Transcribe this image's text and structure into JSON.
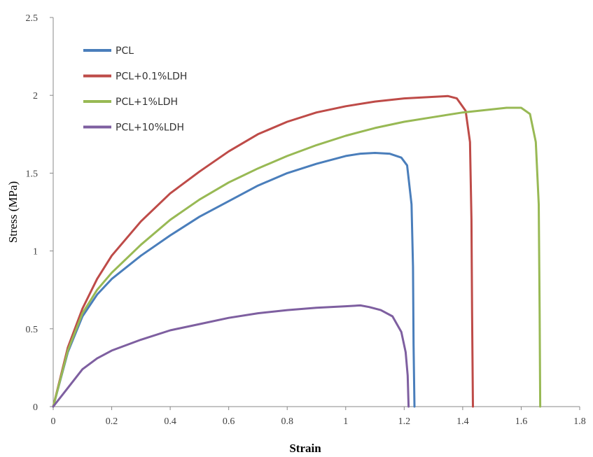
{
  "chart_data": {
    "type": "line",
    "title": "",
    "xlabel": "Strain",
    "ylabel": "Stress (MPa)",
    "xlim": [
      0,
      1.8
    ],
    "ylim": [
      0,
      2.5
    ],
    "xticks": [
      "0",
      "0.2",
      "0.4",
      "0.6",
      "0.8",
      "1",
      "1.2",
      "1.4",
      "1.6",
      "1.8"
    ],
    "yticks": [
      "0",
      "0.5",
      "1",
      "1.5",
      "2",
      "2.5"
    ],
    "grid": false,
    "legend_position": "top-left",
    "series": [
      {
        "name": "PCL",
        "color": "#4a7ebb",
        "points": [
          [
            0,
            0
          ],
          [
            0.05,
            0.35
          ],
          [
            0.1,
            0.58
          ],
          [
            0.15,
            0.72
          ],
          [
            0.2,
            0.82
          ],
          [
            0.3,
            0.97
          ],
          [
            0.4,
            1.1
          ],
          [
            0.5,
            1.22
          ],
          [
            0.6,
            1.32
          ],
          [
            0.7,
            1.42
          ],
          [
            0.8,
            1.5
          ],
          [
            0.9,
            1.56
          ],
          [
            1.0,
            1.61
          ],
          [
            1.05,
            1.625
          ],
          [
            1.1,
            1.63
          ],
          [
            1.15,
            1.625
          ],
          [
            1.19,
            1.6
          ],
          [
            1.21,
            1.55
          ],
          [
            1.225,
            1.3
          ],
          [
            1.23,
            0.9
          ],
          [
            1.232,
            0.4
          ],
          [
            1.235,
            0
          ]
        ]
      },
      {
        "name": "PCL+0.1%LDH",
        "color": "#be4b48",
        "points": [
          [
            0,
            0
          ],
          [
            0.05,
            0.38
          ],
          [
            0.1,
            0.63
          ],
          [
            0.15,
            0.82
          ],
          [
            0.2,
            0.97
          ],
          [
            0.3,
            1.19
          ],
          [
            0.4,
            1.37
          ],
          [
            0.5,
            1.51
          ],
          [
            0.6,
            1.64
          ],
          [
            0.7,
            1.75
          ],
          [
            0.8,
            1.83
          ],
          [
            0.9,
            1.89
          ],
          [
            1.0,
            1.93
          ],
          [
            1.1,
            1.96
          ],
          [
            1.2,
            1.98
          ],
          [
            1.3,
            1.99
          ],
          [
            1.35,
            1.995
          ],
          [
            1.38,
            1.98
          ],
          [
            1.41,
            1.9
          ],
          [
            1.425,
            1.7
          ],
          [
            1.43,
            1.2
          ],
          [
            1.432,
            0.6
          ],
          [
            1.435,
            0
          ]
        ]
      },
      {
        "name": "PCL+1%LDH",
        "color": "#98b954",
        "points": [
          [
            0,
            0
          ],
          [
            0.05,
            0.36
          ],
          [
            0.1,
            0.6
          ],
          [
            0.15,
            0.75
          ],
          [
            0.2,
            0.86
          ],
          [
            0.3,
            1.04
          ],
          [
            0.4,
            1.2
          ],
          [
            0.5,
            1.33
          ],
          [
            0.6,
            1.44
          ],
          [
            0.7,
            1.53
          ],
          [
            0.8,
            1.61
          ],
          [
            0.9,
            1.68
          ],
          [
            1.0,
            1.74
          ],
          [
            1.1,
            1.79
          ],
          [
            1.2,
            1.83
          ],
          [
            1.3,
            1.86
          ],
          [
            1.4,
            1.89
          ],
          [
            1.5,
            1.91
          ],
          [
            1.55,
            1.92
          ],
          [
            1.6,
            1.92
          ],
          [
            1.63,
            1.88
          ],
          [
            1.65,
            1.7
          ],
          [
            1.66,
            1.3
          ],
          [
            1.663,
            0.6
          ],
          [
            1.665,
            0
          ]
        ]
      },
      {
        "name": "PCL+10%LDH",
        "color": "#7e5fa0",
        "points": [
          [
            0,
            0
          ],
          [
            0.05,
            0.12
          ],
          [
            0.1,
            0.24
          ],
          [
            0.15,
            0.31
          ],
          [
            0.2,
            0.36
          ],
          [
            0.3,
            0.43
          ],
          [
            0.4,
            0.49
          ],
          [
            0.5,
            0.53
          ],
          [
            0.6,
            0.57
          ],
          [
            0.7,
            0.6
          ],
          [
            0.8,
            0.62
          ],
          [
            0.9,
            0.635
          ],
          [
            1.0,
            0.645
          ],
          [
            1.05,
            0.65
          ],
          [
            1.08,
            0.64
          ],
          [
            1.12,
            0.62
          ],
          [
            1.16,
            0.58
          ],
          [
            1.19,
            0.48
          ],
          [
            1.205,
            0.35
          ],
          [
            1.212,
            0.2
          ],
          [
            1.215,
            0
          ]
        ]
      }
    ]
  }
}
